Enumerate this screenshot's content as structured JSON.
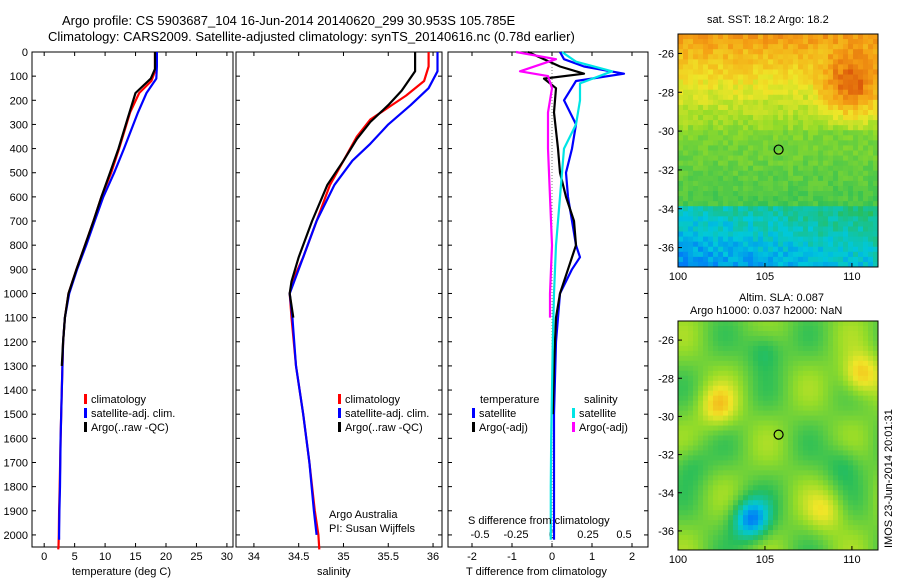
{
  "header": {
    "line1": "Argo profile: CS 5903687_104 16-Jun-2014 20140620_299 30.953S 105.785E",
    "line2": "Climatology: CARS2009. Satellite-adjusted climatology: synTS_20140616.nc (0.78d earlier)"
  },
  "colors": {
    "climatology": "#ff0000",
    "satellite": "#0000ff",
    "argo": "#000000",
    "sal_satellite": "#00e5e5",
    "sal_argo": "#ff00ff"
  },
  "chart_data": [
    {
      "type": "line",
      "name": "temperature-profile",
      "xlabel": "temperature (deg C)",
      "ylabel": "",
      "xlim": [
        -2,
        31
      ],
      "ylim": [
        2050,
        0
      ],
      "xticks": [
        "0",
        "5",
        "10",
        "15",
        "20",
        "25",
        "30"
      ],
      "yticks": [
        "0",
        "100",
        "200",
        "300",
        "400",
        "500",
        "600",
        "700",
        "800",
        "900",
        "1000",
        "1100",
        "1200",
        "1300",
        "1400",
        "1500",
        "1600",
        "1700",
        "1800",
        "1900",
        "2000"
      ],
      "series": [
        {
          "name": "climatology",
          "color": "#ff0000",
          "x": [
            18.2,
            18.2,
            17.6,
            15.6,
            14.1,
            12.3,
            11.0,
            9.4,
            8.1,
            6.7,
            5.3,
            4.0,
            3.4,
            3.1,
            2.9,
            2.7,
            2.55,
            2.45,
            2.4,
            2.35,
            2.3
          ],
          "y": [
            0,
            80,
            120,
            170,
            250,
            400,
            500,
            600,
            700,
            800,
            900,
            1000,
            1100,
            1200,
            1400,
            1600,
            1800,
            1900,
            2000,
            2050,
            2060
          ]
        },
        {
          "name": "satellite-adj. clim.",
          "color": "#0000ff",
          "x": [
            18.5,
            18.5,
            18.4,
            16.8,
            15.4,
            13.1,
            11.5,
            9.7,
            8.3,
            6.9,
            5.4,
            4.1,
            3.4,
            3.1,
            2.9,
            2.7,
            2.6,
            2.5,
            2.45,
            2.45
          ],
          "y": [
            0,
            60,
            110,
            170,
            250,
            400,
            500,
            600,
            700,
            800,
            900,
            1000,
            1100,
            1200,
            1400,
            1600,
            1800,
            1900,
            2000,
            2020
          ]
        },
        {
          "name": "Argo(..raw -QC)",
          "color": "#000000",
          "x": [
            18.2,
            18.2,
            17.5,
            15.0,
            14.0,
            12.2,
            10.8,
            9.4,
            8.1,
            6.7,
            5.3,
            4.0,
            3.4,
            3.1,
            2.9
          ],
          "y": [
            0,
            70,
            110,
            170,
            250,
            400,
            500,
            600,
            700,
            800,
            900,
            1000,
            1100,
            1200,
            1300
          ]
        }
      ],
      "legend": [
        "climatology",
        "satellite-adj. clim.",
        "Argo(..raw -QC)"
      ]
    },
    {
      "type": "line",
      "name": "salinity-profile",
      "xlabel": "salinity",
      "xlim": [
        33.8,
        36.1
      ],
      "ylim": [
        2050,
        0
      ],
      "xticks": [
        "34",
        "34.5",
        "35",
        "35.5",
        "36"
      ],
      "series": [
        {
          "name": "climatology",
          "color": "#ff0000",
          "x": [
            35.95,
            35.95,
            35.9,
            35.7,
            35.5,
            35.3,
            35.15,
            35.0,
            34.85,
            34.7,
            34.55,
            34.43,
            34.4,
            34.42,
            34.47,
            34.55,
            34.62,
            34.68,
            34.72,
            34.73
          ],
          "y": [
            0,
            60,
            120,
            180,
            230,
            280,
            350,
            450,
            550,
            700,
            850,
            950,
            1000,
            1100,
            1300,
            1500,
            1700,
            1900,
            2000,
            2060
          ]
        },
        {
          "name": "satellite-adj. clim.",
          "color": "#0000ff",
          "x": [
            36.05,
            36.05,
            35.95,
            35.75,
            35.5,
            35.3,
            35.1,
            34.9,
            34.7,
            34.55,
            34.45,
            34.4,
            34.43,
            34.47,
            34.55,
            34.62,
            34.67,
            34.7
          ],
          "y": [
            0,
            80,
            150,
            220,
            300,
            380,
            450,
            550,
            700,
            850,
            950,
            1000,
            1100,
            1300,
            1500,
            1700,
            1900,
            2000
          ]
        },
        {
          "name": "Argo(..raw -QC)",
          "color": "#000000",
          "x": [
            35.8,
            35.8,
            35.65,
            35.5,
            35.3,
            35.15,
            35.0,
            34.82,
            34.65,
            34.5,
            34.42,
            34.4,
            34.44
          ],
          "y": [
            0,
            80,
            160,
            220,
            290,
            360,
            450,
            550,
            700,
            850,
            950,
            1000,
            1100
          ]
        }
      ],
      "legend": [
        "climatology",
        "satellite-adj. clim.",
        "Argo(..raw -QC)"
      ],
      "annotation": [
        "Argo Australia",
        "PI: Susan Wijffels"
      ]
    },
    {
      "type": "line",
      "name": "difference-profile",
      "xlabel": "T difference from climatology",
      "xlabel_top": "S difference from climatology",
      "xlim": [
        -2.6,
        2.4
      ],
      "ylim": [
        2050,
        0
      ],
      "xticks": [
        "-2",
        "-1",
        "0",
        "1",
        "2"
      ],
      "xticks_top": [
        "-0.5",
        "-0.25",
        "0",
        "0.25",
        "0.5"
      ],
      "series": [
        {
          "name": "temperature satellite",
          "color": "#0000ff",
          "x": [
            0.2,
            0.3,
            0.8,
            1.8,
            0.6,
            0.3,
            0.6,
            0.5,
            0.35,
            0.4,
            0.5,
            0.6,
            0.7,
            0.5,
            0.2,
            0.1,
            0.05,
            0.05,
            0.05
          ],
          "y": [
            0,
            30,
            60,
            90,
            120,
            200,
            300,
            400,
            500,
            600,
            700,
            800,
            850,
            900,
            1000,
            1200,
            1500,
            1800,
            2020
          ]
        },
        {
          "name": "temperature Argo(-adj)",
          "color": "#000000",
          "x": [
            -0.6,
            0.2,
            0.8,
            -0.2,
            0.1,
            0.05,
            0.15,
            0.2,
            0.35,
            0.55,
            0.6,
            0.4,
            0.2,
            0.1,
            0.05,
            0.02
          ],
          "y": [
            0,
            60,
            90,
            110,
            150,
            250,
            400,
            500,
            600,
            700,
            800,
            900,
            1000,
            1100,
            1300,
            1500
          ]
        },
        {
          "name": "salinity satellite",
          "color": "#00e5e5",
          "x": [
            0.25,
            0.6,
            1.5,
            0.7,
            0.7,
            0.6,
            0.3,
            0.2,
            0.1,
            0.05,
            0.02,
            0.0,
            -0.02,
            -0.03,
            -0.03
          ],
          "y": [
            0,
            40,
            80,
            130,
            200,
            300,
            400,
            600,
            800,
            1000,
            1200,
            1400,
            1600,
            1800,
            2020
          ]
        },
        {
          "name": "salinity Argo(-adj)",
          "color": "#ff00ff",
          "x": [
            -0.9,
            0.1,
            -0.8,
            -0.1,
            0.0,
            -0.1,
            -0.1,
            -0.05,
            0.0,
            -0.05,
            -0.05
          ],
          "y": [
            0,
            30,
            80,
            100,
            150,
            250,
            400,
            600,
            800,
            1000,
            1100
          ]
        }
      ],
      "legend_headers": [
        "temperature",
        "salinity"
      ],
      "legend": [
        "satellite",
        "Argo(-adj)",
        "satellite",
        "Argo(-adj)"
      ]
    },
    {
      "type": "heatmap",
      "name": "sst-map",
      "title": "sat. SST: 18.2 Argo: 18.2",
      "xlim": [
        100,
        111.5
      ],
      "ylim": [
        -37,
        -25
      ],
      "xticks": [
        "100",
        "105",
        "110"
      ],
      "yticks": [
        "-26",
        "-28",
        "-30",
        "-32",
        "-34",
        "-36"
      ],
      "marker": {
        "lon": 105.785,
        "lat": -30.953
      }
    },
    {
      "type": "heatmap",
      "name": "sla-map",
      "title_line1": "Altim. SLA: 0.087",
      "title_line2": "Argo h1000: 0.037 h2000: NaN",
      "xlim": [
        100,
        111.5
      ],
      "ylim": [
        -37,
        -25
      ],
      "xticks": [
        "100",
        "105",
        "110"
      ],
      "yticks": [
        "-26",
        "-28",
        "-30",
        "-32",
        "-34",
        "-36"
      ],
      "marker": {
        "lon": 105.785,
        "lat": -30.953
      }
    }
  ],
  "footer_stamp": "IMOS 23-Jun-2014 20:01:31"
}
